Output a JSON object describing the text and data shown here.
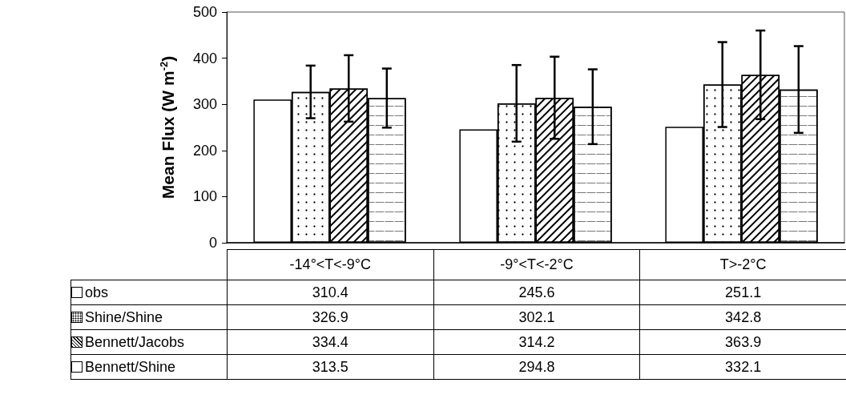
{
  "chart_data": {
    "type": "bar",
    "ylabel": "Mean Flux (W m$^{-2}$)",
    "categories": [
      "-14°<T<-9°C",
      "-9°<T<-2°C",
      "T>-2°C"
    ],
    "series": [
      {
        "name": "obs",
        "color": "#ffffff",
        "values": [
          310.4,
          245.6,
          251.1
        ]
      },
      {
        "name": "Shine/Shine",
        "color": "#ffffff",
        "values": [
          326.9,
          302.1,
          342.8
        ],
        "errors": [
          57,
          83,
          92
        ]
      },
      {
        "name": "Bennett/Jacobs",
        "color": "#ffffff",
        "values": [
          334.4,
          314.2,
          363.9
        ],
        "errors": [
          72,
          89,
          96
        ]
      },
      {
        "name": "Bennett/Shine",
        "color": "#ffffff",
        "values": [
          313.5,
          294.8,
          332.1
        ],
        "errors": [
          64,
          81,
          94
        ]
      }
    ],
    "ylim": [
      0,
      500
    ],
    "yticks": [
      0,
      100,
      200,
      300,
      400,
      500
    ],
    "grid": false,
    "legend": "bottom",
    "data_labels": true
  }
}
